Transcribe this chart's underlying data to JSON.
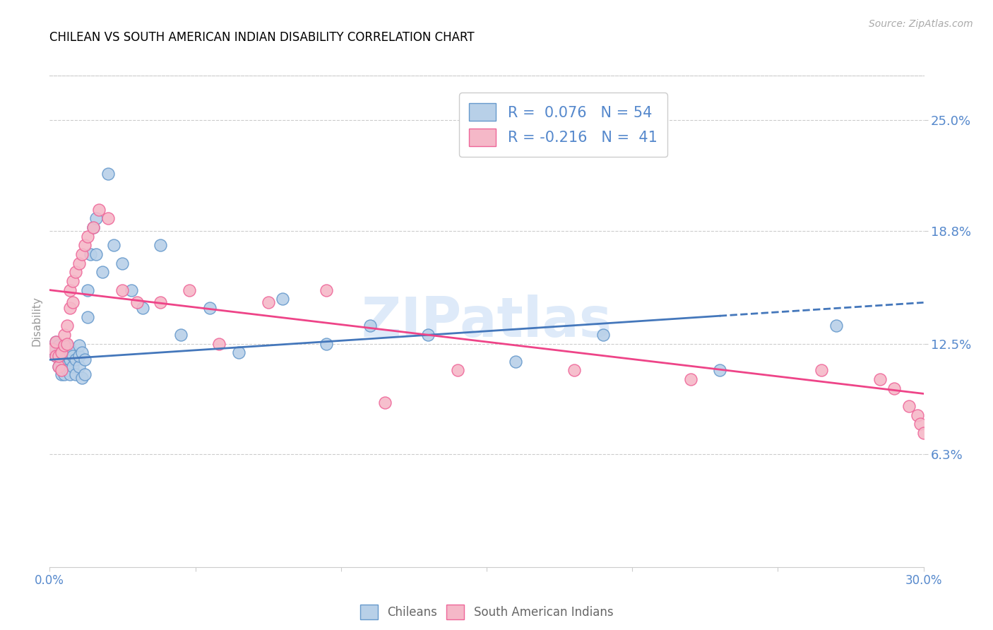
{
  "title": "CHILEAN VS SOUTH AMERICAN INDIAN DISABILITY CORRELATION CHART",
  "source": "Source: ZipAtlas.com",
  "ylabel": "Disability",
  "ytick_labels": [
    "6.3%",
    "12.5%",
    "18.8%",
    "25.0%"
  ],
  "ytick_values": [
    0.063,
    0.125,
    0.188,
    0.25
  ],
  "xlim": [
    0.0,
    0.3
  ],
  "ylim": [
    0.0,
    0.275
  ],
  "watermark": "ZIPatlas",
  "blue_color": "#b8d0e8",
  "pink_color": "#f5b8c8",
  "blue_edge_color": "#6699cc",
  "pink_edge_color": "#ee6699",
  "blue_line_color": "#4477bb",
  "pink_line_color": "#ee4488",
  "label_color": "#5588cc",
  "blue_line_r": 0.076,
  "pink_line_r": -0.216,
  "blue_line_start_x": 0.0,
  "blue_line_solid_end_x": 0.23,
  "blue_line_dash_end_x": 0.3,
  "blue_line_start_y": 0.116,
  "blue_line_end_y": 0.148,
  "pink_line_start_x": 0.0,
  "pink_line_end_x": 0.3,
  "pink_line_start_y": 0.155,
  "pink_line_end_y": 0.097,
  "blue_points_x": [
    0.001,
    0.002,
    0.002,
    0.003,
    0.003,
    0.003,
    0.004,
    0.004,
    0.004,
    0.005,
    0.005,
    0.005,
    0.005,
    0.006,
    0.006,
    0.006,
    0.007,
    0.007,
    0.007,
    0.008,
    0.008,
    0.009,
    0.009,
    0.01,
    0.01,
    0.01,
    0.011,
    0.011,
    0.012,
    0.012,
    0.013,
    0.013,
    0.014,
    0.015,
    0.016,
    0.016,
    0.018,
    0.02,
    0.022,
    0.025,
    0.028,
    0.032,
    0.038,
    0.045,
    0.055,
    0.065,
    0.08,
    0.095,
    0.11,
    0.13,
    0.16,
    0.19,
    0.23,
    0.27
  ],
  "blue_points_y": [
    0.122,
    0.118,
    0.126,
    0.112,
    0.118,
    0.124,
    0.108,
    0.114,
    0.12,
    0.108,
    0.112,
    0.116,
    0.122,
    0.11,
    0.118,
    0.124,
    0.108,
    0.116,
    0.122,
    0.112,
    0.118,
    0.108,
    0.116,
    0.112,
    0.118,
    0.124,
    0.106,
    0.12,
    0.108,
    0.116,
    0.14,
    0.155,
    0.175,
    0.19,
    0.175,
    0.195,
    0.165,
    0.22,
    0.18,
    0.17,
    0.155,
    0.145,
    0.18,
    0.13,
    0.145,
    0.12,
    0.15,
    0.125,
    0.135,
    0.13,
    0.115,
    0.13,
    0.11,
    0.135
  ],
  "pink_points_x": [
    0.001,
    0.002,
    0.002,
    0.003,
    0.003,
    0.004,
    0.004,
    0.005,
    0.005,
    0.006,
    0.006,
    0.007,
    0.007,
    0.008,
    0.008,
    0.009,
    0.01,
    0.011,
    0.012,
    0.013,
    0.015,
    0.017,
    0.02,
    0.025,
    0.03,
    0.038,
    0.048,
    0.058,
    0.075,
    0.095,
    0.115,
    0.14,
    0.18,
    0.22,
    0.265,
    0.285,
    0.29,
    0.295,
    0.298,
    0.299,
    0.3
  ],
  "pink_points_y": [
    0.122,
    0.118,
    0.126,
    0.112,
    0.118,
    0.11,
    0.12,
    0.124,
    0.13,
    0.125,
    0.135,
    0.145,
    0.155,
    0.148,
    0.16,
    0.165,
    0.17,
    0.175,
    0.18,
    0.185,
    0.19,
    0.2,
    0.195,
    0.155,
    0.148,
    0.148,
    0.155,
    0.125,
    0.148,
    0.155,
    0.092,
    0.11,
    0.11,
    0.105,
    0.11,
    0.105,
    0.1,
    0.09,
    0.085,
    0.08,
    0.075
  ]
}
